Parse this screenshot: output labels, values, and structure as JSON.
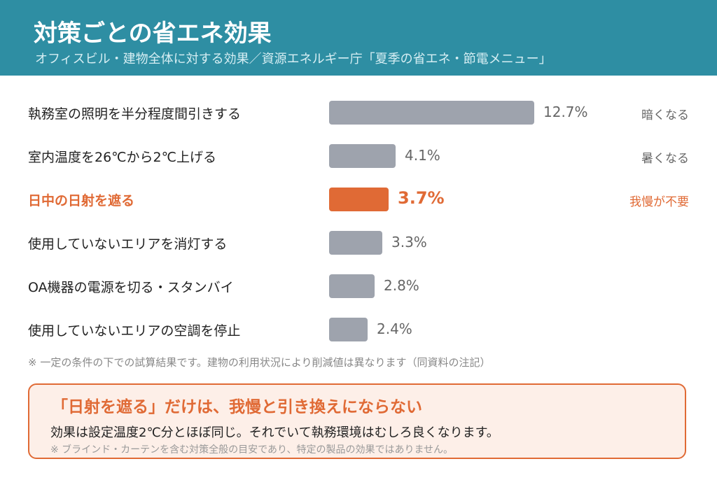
{
  "header": {
    "title": "対策ごとの省エネ効果",
    "subtitle": "オフィスビル・建物全体に対する効果／資源エネルギー庁「夏季の省エネ・節電メニュー」"
  },
  "chart_data": {
    "type": "bar",
    "orientation": "horizontal",
    "categories": [
      "執務室の照明を半分程度間引きする",
      "室内温度を26℃から2℃上げる",
      "日中の日射を遮る",
      "使用していないエリアを消灯する",
      "OA機器の電源を切る・スタンバイ",
      "使用していないエリアの空調を停止"
    ],
    "values": [
      12.7,
      4.1,
      3.7,
      3.3,
      2.8,
      2.4
    ],
    "value_labels": [
      "12.7%",
      "4.1%",
      "3.7%",
      "3.3%",
      "2.8%",
      "2.4%"
    ],
    "notes": [
      "暗くなる",
      "暑くなる",
      "我慢が不要",
      "",
      "",
      ""
    ],
    "highlight_index": 2,
    "colors": {
      "bar": "#9ea3ad",
      "highlight": "#e06a35",
      "header": "#2e8ea3"
    },
    "grid": false,
    "legend": "none"
  },
  "footnote": "※ 一定の条件の下での試算結果です。建物の利用状況により削減値は異なります（同資料の注記）",
  "callout": {
    "title": "「日射を遮る」だけは、我慢と引き換えにならない",
    "body": "効果は設定温度2℃分とほぼ同じ。それでいて執務環境はむしろ良くなります。",
    "note": "※ ブラインド・カーテンを含む対策全般の目安であり、特定の製品の効果ではありません。"
  }
}
